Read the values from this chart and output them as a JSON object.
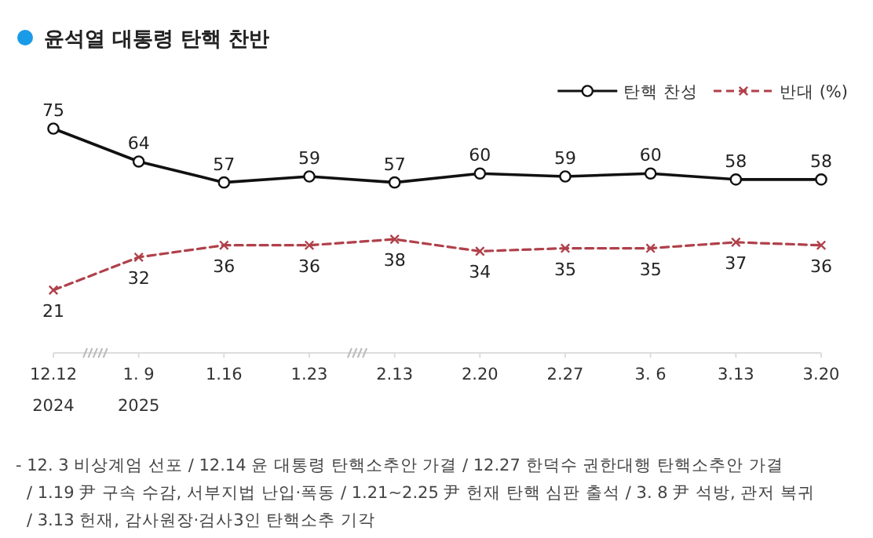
{
  "chart_data": {
    "type": "line",
    "title": "윤석열 대통령 탄핵 찬반",
    "categories": [
      "12.12\n2024",
      "1. 9\n2025",
      "1.16",
      "1.23",
      "2.13",
      "2.20",
      "2.27",
      "3. 6",
      "3.13",
      "3.20"
    ],
    "series": [
      {
        "name": "탄핵 찬성",
        "color": "#111111",
        "marker": "circle",
        "line_style": "solid",
        "values": [
          75,
          64,
          57,
          59,
          57,
          60,
          59,
          60,
          58,
          58
        ]
      },
      {
        "name": "반대 (%)",
        "color": "#b0404a",
        "marker": "cross",
        "line_style": "dashed",
        "values": [
          21,
          32,
          36,
          36,
          38,
          34,
          35,
          35,
          37,
          36
        ]
      }
    ],
    "data_labels": true,
    "legend": "top right",
    "annotations": [
      "- 12. 3 비상계엄 선포 / 12.14 윤 대통령 탄핵소추안 가결 / 12.27 한덕수 권한대행 탄핵소추안 가결",
      "/ 1.19 尹 구속 수감, 서부지법 난입·폭동 / 1.21~2.25 尹 헌재 탄핵 심판 출석 / 3. 8 尹 석방, 관저 복귀",
      "/ 3.13 헌재, 감사원장·검사3인 탄핵소추 기각"
    ]
  }
}
